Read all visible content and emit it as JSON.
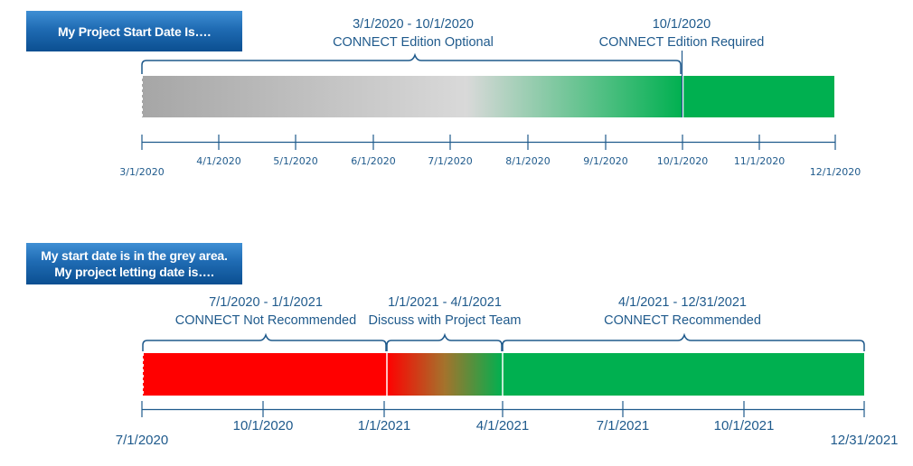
{
  "top_section": {
    "header_button": "My Project Start Date Is….",
    "label_optional_range": "3/1/2020 - 10/1/2020",
    "label_optional_text": "CONNECT Edition Optional",
    "label_required_date": "10/1/2020",
    "label_required_text": "CONNECT Edition Required",
    "ticks": [
      "3/1/2020",
      "4/1/2020",
      "5/1/2020",
      "6/1/2020",
      "7/1/2020",
      "8/1/2020",
      "9/1/2020",
      "10/1/2020",
      "11/1/2020",
      "12/1/2020"
    ]
  },
  "bottom_section": {
    "header_line1": "My start date is in the grey area.",
    "header_line2": "My project letting date is….",
    "label_not_rec_range": "7/1/2020 - 1/1/2021",
    "label_not_rec_text": "CONNECT Not Recommended",
    "label_discuss_range": "1/1/2021 - 4/1/2021",
    "label_discuss_text": "Discuss with Project Team",
    "label_rec_range": "4/1/2021 - 12/31/2021",
    "label_rec_text": "CONNECT Recommended",
    "ticks": [
      "7/1/2020",
      "10/1/2020",
      "1/1/2021",
      "4/1/2021",
      "7/1/2021",
      "10/1/2021",
      "12/31/2021"
    ]
  },
  "colors": {
    "grey_dark": "#a6a6a6",
    "grey_light": "#d9d9d9",
    "green": "#00b050",
    "red": "#ff0000",
    "brown_mid": "#a4732c",
    "axis_blue": "#1f5a8c",
    "header_blue": "#1f6bb3"
  }
}
